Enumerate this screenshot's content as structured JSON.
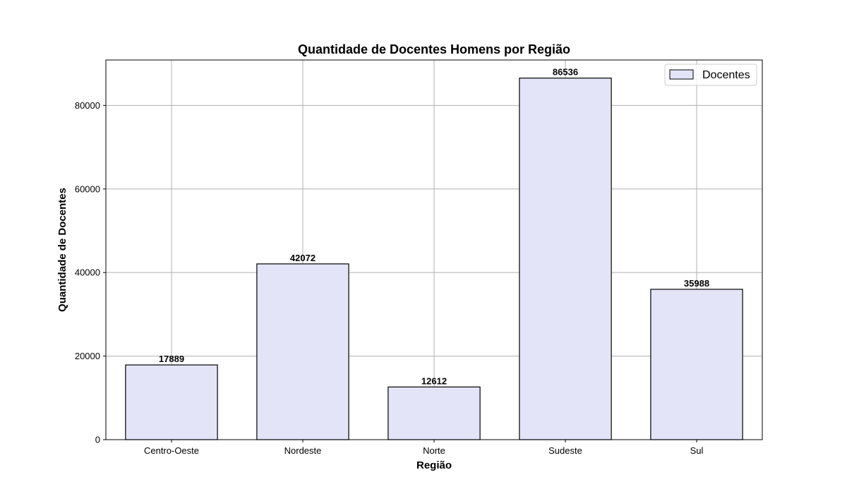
{
  "chart_data": {
    "type": "bar",
    "title": "Quantidade de Docentes Homens por Região",
    "xlabel": "Região",
    "ylabel": "Quantidade de Docentes",
    "categories": [
      "Centro-Oeste",
      "Nordeste",
      "Norte",
      "Sudeste",
      "Sul"
    ],
    "series": [
      {
        "name": "Docentes",
        "values": [
          17889,
          42072,
          12612,
          86536,
          35988
        ]
      }
    ],
    "data_labels": [
      "17889",
      "42072",
      "12612",
      "86536",
      "35988"
    ],
    "ylim": [
      0,
      90872
    ],
    "yticks": [
      0,
      20000,
      40000,
      60000,
      80000
    ],
    "grid": true,
    "legend_position": "top-right",
    "colors": {
      "bar_fill": "#e3e4f8",
      "bar_edge": "#000000",
      "grid": "#b0b0b0"
    }
  }
}
